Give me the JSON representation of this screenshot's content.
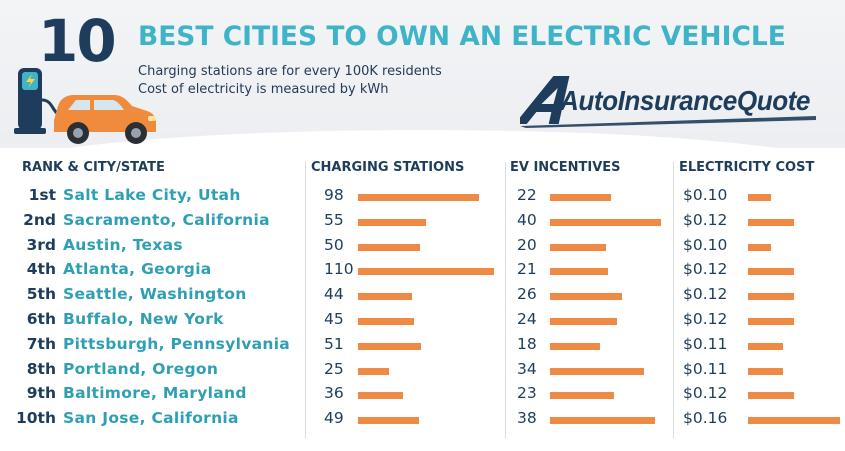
{
  "header": {
    "number": "10",
    "title": "BEST CITIES TO OWN AN ELECTRIC VEHICLE",
    "subtitle_line1": "Charging stations are for every 100K residents",
    "subtitle_line2": "Cost of electricity is measured by kWh",
    "brand": "AutoInsuranceQuote"
  },
  "colors": {
    "navy": "#1e3d5c",
    "teal": "#3fb4c9",
    "bar": "#ef8a45",
    "car": "#f08a3c"
  },
  "chart_data": {
    "type": "table",
    "title": "10 BEST CITIES TO OWN AN ELECTRIC VEHICLE",
    "columns": [
      "RANK & CITY/STATE",
      "CHARGING STATIONS",
      "EV INCENTIVES",
      "ELECTRICITY COST"
    ],
    "rows": [
      {
        "rank": "1st",
        "city": "Salt Lake City, Utah",
        "stations": 98,
        "incentives": 22,
        "cost_label": "$0.10",
        "cost": 0.1
      },
      {
        "rank": "2nd",
        "city": "Sacramento, California",
        "stations": 55,
        "incentives": 40,
        "cost_label": "$0.12",
        "cost": 0.12
      },
      {
        "rank": "3rd",
        "city": "Austin, Texas",
        "stations": 50,
        "incentives": 20,
        "cost_label": "$0.10",
        "cost": 0.1
      },
      {
        "rank": "4th",
        "city": "Atlanta, Georgia",
        "stations": 110,
        "incentives": 21,
        "cost_label": "$0.12",
        "cost": 0.12
      },
      {
        "rank": "5th",
        "city": "Seattle, Washington",
        "stations": 44,
        "incentives": 26,
        "cost_label": "$0.12",
        "cost": 0.12
      },
      {
        "rank": "6th",
        "city": "Buffalo, New York",
        "stations": 45,
        "incentives": 24,
        "cost_label": "$0.12",
        "cost": 0.12
      },
      {
        "rank": "7th",
        "city": "Pittsburgh, Pennsylvania",
        "stations": 51,
        "incentives": 18,
        "cost_label": "$0.11",
        "cost": 0.11
      },
      {
        "rank": "8th",
        "city": "Portland, Oregon",
        "stations": 25,
        "incentives": 34,
        "cost_label": "$0.11",
        "cost": 0.11
      },
      {
        "rank": "9th",
        "city": "Baltimore, Maryland",
        "stations": 36,
        "incentives": 23,
        "cost_label": "$0.12",
        "cost": 0.12
      },
      {
        "rank": "10th",
        "city": "San Jose, California",
        "stations": 49,
        "incentives": 38,
        "cost_label": "$0.16",
        "cost": 0.16
      }
    ],
    "series": [
      {
        "name": "CHARGING STATIONS",
        "key": "stations",
        "max": 110
      },
      {
        "name": "EV INCENTIVES",
        "key": "incentives",
        "max": 40
      },
      {
        "name": "ELECTRICITY COST",
        "key": "cost",
        "max": 0.16
      }
    ]
  }
}
